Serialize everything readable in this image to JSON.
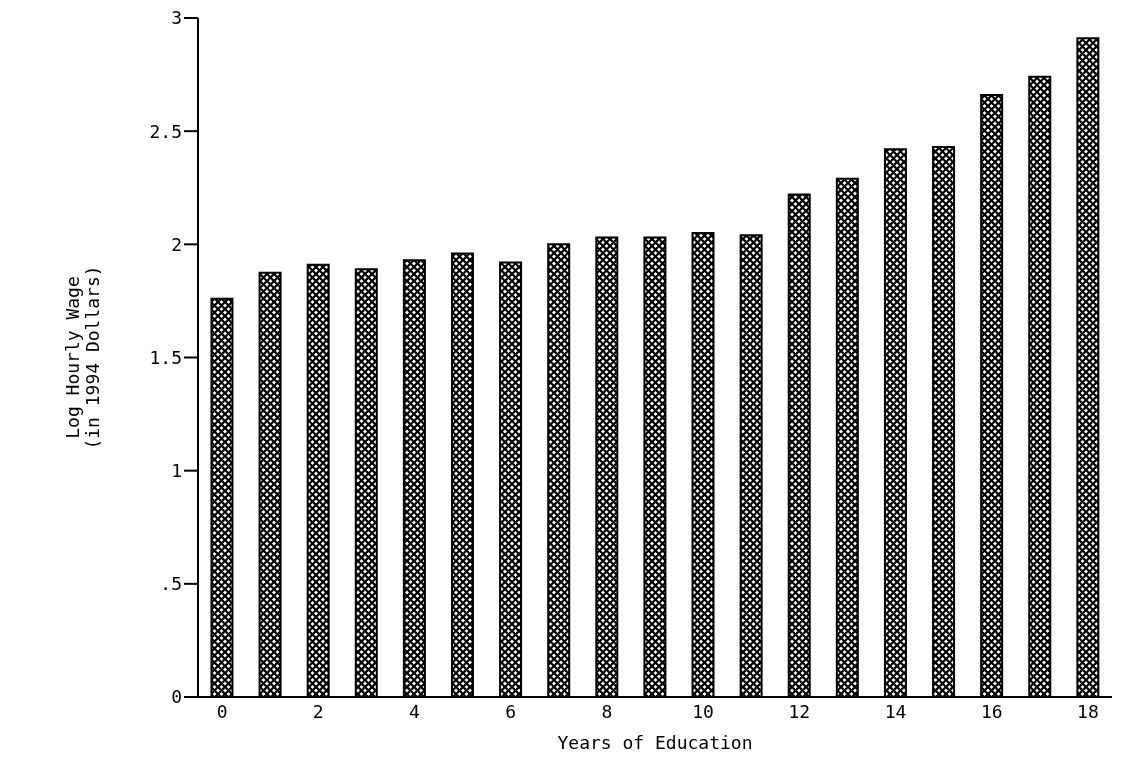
{
  "chart_data": {
    "type": "bar",
    "xlabel": "Years of Education",
    "ylabel": "Log Hourly Wage\n(in 1994 Dollars)",
    "categories": [
      "0",
      null,
      "2",
      null,
      "4",
      null,
      "6",
      null,
      "8",
      null,
      "10",
      null,
      "12",
      null,
      "14",
      null,
      "16",
      null,
      "18"
    ],
    "values": [
      1.76,
      1.875,
      1.91,
      1.89,
      1.93,
      1.96,
      1.92,
      2.0,
      2.03,
      2.03,
      2.05,
      2.04,
      2.22,
      2.29,
      2.42,
      2.43,
      2.66,
      2.74,
      2.91
    ],
    "color": "#000000",
    "ylim": [
      0,
      3
    ],
    "yticks": [
      0,
      {
        "value": 0.5,
        "label": ".5"
      },
      1,
      1.5,
      2,
      2.5,
      3
    ],
    "grid": false,
    "legend": false
  }
}
